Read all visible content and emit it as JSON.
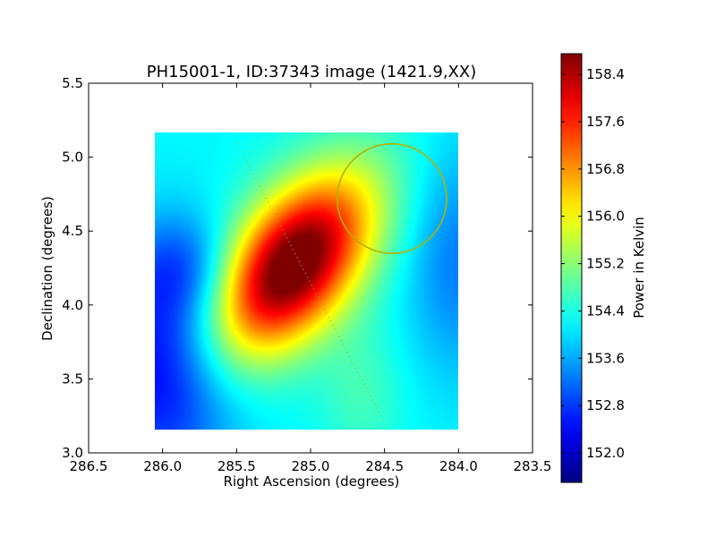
{
  "chart_data": {
    "type": "heatmap",
    "title": "PH15001-1, ID:37343 image (1421.9,XX)",
    "xlabel": "Right Ascension (degrees)",
    "ylabel": "Declination (degrees)",
    "xlim": [
      286.5,
      283.5
    ],
    "ylim": [
      3.0,
      5.5
    ],
    "xticks": [
      "286.5",
      "286.0",
      "285.5",
      "285.0",
      "284.5",
      "284.0",
      "283.5"
    ],
    "yticks": [
      "3.0",
      "3.5",
      "4.0",
      "4.5",
      "5.0",
      "5.5"
    ],
    "xtick_values": [
      286.5,
      286.0,
      285.5,
      285.0,
      284.5,
      284.0,
      283.5
    ],
    "ytick_values": [
      3.0,
      3.5,
      4.0,
      4.5,
      5.0,
      5.5
    ],
    "image_extent": {
      "ra_min": 284.0,
      "ra_max": 286.05,
      "dec_min": 3.16,
      "dec_max": 5.17
    },
    "colormap": "jet",
    "colorbar": {
      "label": "Power in Kelvin",
      "vmin": 151.5,
      "vmax": 158.75,
      "ticks": [
        "152.0",
        "152.8",
        "153.6",
        "154.4",
        "155.2",
        "156.0",
        "156.8",
        "157.6",
        "158.4"
      ],
      "tick_values": [
        152.0,
        152.8,
        153.6,
        154.4,
        155.2,
        156.0,
        156.8,
        157.6,
        158.4
      ]
    },
    "source_peak": {
      "ra": 285.12,
      "dec": 4.27,
      "value": 158.7
    },
    "source_sigma": {
      "major": 0.5,
      "minor": 0.28
    },
    "source_position_angle_deg": -38,
    "background": {
      "min": 151.6,
      "mean": 153.6
    },
    "scan_line": {
      "ra_start": 285.5,
      "dec_start": 5.1,
      "ra_end": 284.5,
      "dec_end": 3.2,
      "color": "#b5b000"
    },
    "beam_circle": {
      "ra": 284.45,
      "dec": 4.72,
      "radius_deg": 0.37,
      "color": "#b5b000"
    }
  }
}
